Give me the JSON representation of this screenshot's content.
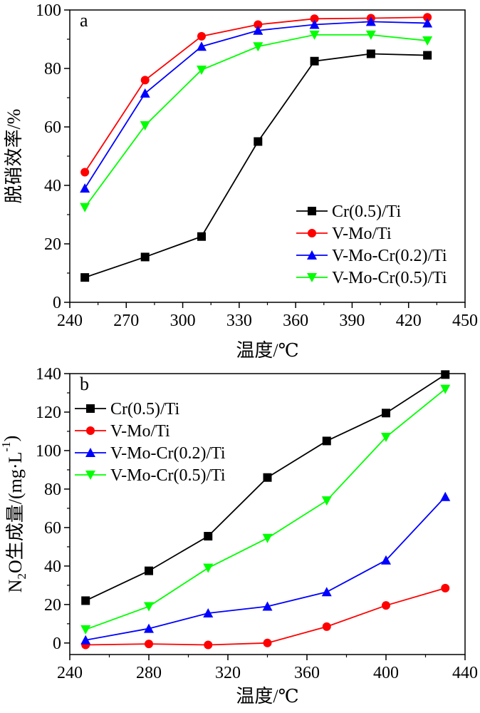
{
  "chart_data": [
    {
      "panel_label": "a",
      "type": "line",
      "title": "",
      "xlabel": "温度/℃",
      "ylabel": "脱硝效率/%",
      "xlim": [
        240,
        450
      ],
      "ylim": [
        0,
        100
      ],
      "xticks": [
        240,
        270,
        300,
        330,
        360,
        390,
        420,
        450
      ],
      "yticks": [
        0,
        20,
        40,
        60,
        80,
        100
      ],
      "legend_position": "bottom-right",
      "x": [
        248,
        280,
        310,
        340,
        370,
        400,
        430
      ],
      "series": [
        {
          "name": "Cr(0.5)/Ti",
          "marker": "square",
          "color": "#000000",
          "values": [
            8.5,
            15.5,
            22.5,
            55.0,
            82.5,
            85.0,
            84.5
          ]
        },
        {
          "name": "V-Mo/Ti",
          "marker": "circle",
          "color": "#ff0000",
          "values": [
            44.5,
            76.0,
            91.0,
            95.0,
            97.0,
            97.2,
            97.5
          ]
        },
        {
          "name": "V-Mo-Cr(0.2)/Ti",
          "marker": "triangle-up",
          "color": "#0000ff",
          "values": [
            39.0,
            71.5,
            87.5,
            93.0,
            95.0,
            96.0,
            95.5
          ]
        },
        {
          "name": "V-Mo-Cr(0.5)/Ti",
          "marker": "triangle-down",
          "color": "#00ff00",
          "values": [
            32.5,
            60.5,
            79.5,
            87.5,
            91.5,
            91.5,
            89.5
          ]
        }
      ]
    },
    {
      "panel_label": "b",
      "type": "line",
      "title": "",
      "xlabel": "温度/℃",
      "ylabel_prefix": "N",
      "ylabel_sub": "2",
      "ylabel_mid": "O生成量/(mg·L",
      "ylabel_sup": "-1",
      "ylabel_suffix": ")",
      "xlim": [
        240,
        440
      ],
      "ylim": [
        -6,
        140
      ],
      "xticks": [
        240,
        280,
        320,
        360,
        400,
        440
      ],
      "yticks": [
        0,
        20,
        40,
        60,
        80,
        100,
        120,
        140
      ],
      "legend_position": "top-left",
      "x": [
        248,
        280,
        310,
        340,
        370,
        400,
        430
      ],
      "series": [
        {
          "name": "Cr(0.5)/Ti",
          "marker": "square",
          "color": "#000000",
          "values": [
            22.0,
            37.5,
            55.5,
            86.0,
            105.0,
            119.5,
            139.5
          ]
        },
        {
          "name": "V-Mo/Ti",
          "marker": "circle",
          "color": "#ff0000",
          "values": [
            -1.0,
            -0.5,
            -1.0,
            0.0,
            8.5,
            19.5,
            28.5
          ]
        },
        {
          "name": "V-Mo-Cr(0.2)/Ti",
          "marker": "triangle-up",
          "color": "#0000ff",
          "values": [
            1.5,
            7.5,
            15.5,
            19.0,
            26.5,
            43.0,
            76.0
          ]
        },
        {
          "name": "V-Mo-Cr(0.5)/Ti",
          "marker": "triangle-down",
          "color": "#00ff00",
          "values": [
            7.0,
            19.0,
            39.0,
            54.5,
            74.0,
            107.0,
            132.0
          ]
        }
      ]
    }
  ]
}
